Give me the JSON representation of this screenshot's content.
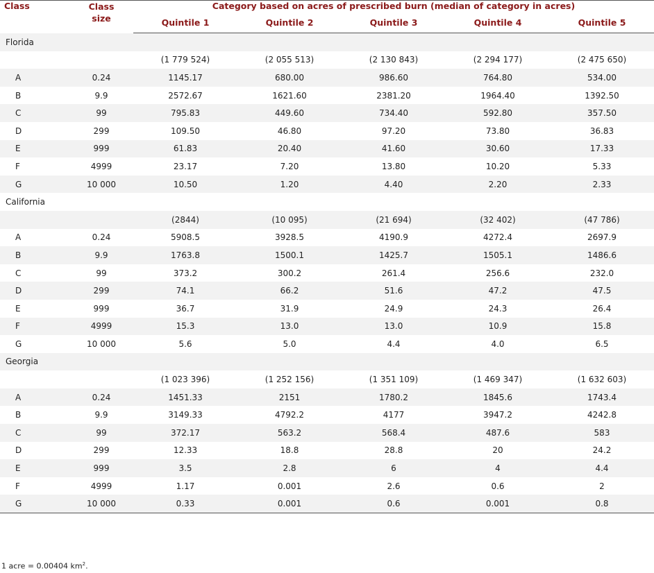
{
  "headers": {
    "class": "Class",
    "class_size": "Class size",
    "span": "Category based on acres of prescribed burn (median of category in acres)",
    "quintiles": [
      "Quintile 1",
      "Quintile 2",
      "Quintile 3",
      "Quintile 4",
      "Quintile 5"
    ]
  },
  "states": [
    {
      "name": "Florida",
      "medians": [
        "(1 779 524)",
        "(2 055 513)",
        "(2 130 843)",
        "(2 294 177)",
        "(2 475 650)"
      ],
      "rows": [
        {
          "cls": "A",
          "size": "0.24",
          "q": [
            "1145.17",
            "680.00",
            "986.60",
            "764.80",
            "534.00"
          ]
        },
        {
          "cls": "B",
          "size": "9.9",
          "q": [
            "2572.67",
            "1621.60",
            "2381.20",
            "1964.40",
            "1392.50"
          ]
        },
        {
          "cls": "C",
          "size": "99",
          "q": [
            "795.83",
            "449.60",
            "734.40",
            "592.80",
            "357.50"
          ]
        },
        {
          "cls": "D",
          "size": "299",
          "q": [
            "109.50",
            "46.80",
            "97.20",
            "73.80",
            "36.83"
          ]
        },
        {
          "cls": "E",
          "size": "999",
          "q": [
            "61.83",
            "20.40",
            "41.60",
            "30.60",
            "17.33"
          ]
        },
        {
          "cls": "F",
          "size": "4999",
          "q": [
            "23.17",
            "7.20",
            "13.80",
            "10.20",
            "5.33"
          ]
        },
        {
          "cls": "G",
          "size": "10 000",
          "q": [
            "10.50",
            "1.20",
            "4.40",
            "2.20",
            "2.33"
          ]
        }
      ]
    },
    {
      "name": "California",
      "medians": [
        "(2844)",
        "(10 095)",
        "(21 694)",
        "(32 402)",
        "(47 786)"
      ],
      "rows": [
        {
          "cls": "A",
          "size": "0.24",
          "q": [
            "5908.5",
            "3928.5",
            "4190.9",
            "4272.4",
            "2697.9"
          ]
        },
        {
          "cls": "B",
          "size": "9.9",
          "q": [
            "1763.8",
            "1500.1",
            "1425.7",
            "1505.1",
            "1486.6"
          ]
        },
        {
          "cls": "C",
          "size": "99",
          "q": [
            "373.2",
            "300.2",
            "261.4",
            "256.6",
            "232.0"
          ]
        },
        {
          "cls": "D",
          "size": "299",
          "q": [
            "74.1",
            "66.2",
            "51.6",
            "47.2",
            "47.5"
          ]
        },
        {
          "cls": "E",
          "size": "999",
          "q": [
            "36.7",
            "31.9",
            "24.9",
            "24.3",
            "26.4"
          ]
        },
        {
          "cls": "F",
          "size": "4999",
          "q": [
            "15.3",
            "13.0",
            "13.0",
            "10.9",
            "15.8"
          ]
        },
        {
          "cls": "G",
          "size": "10 000",
          "q": [
            "5.6",
            "5.0",
            "4.4",
            "4.0",
            "6.5"
          ]
        }
      ]
    },
    {
      "name": "Georgia",
      "medians": [
        "(1 023 396)",
        "(1 252 156)",
        "(1 351 109)",
        "(1 469 347)",
        "(1 632 603)"
      ],
      "rows": [
        {
          "cls": "A",
          "size": "0.24",
          "q": [
            "1451.33",
            "2151",
            "1780.2",
            "1845.6",
            "1743.4"
          ]
        },
        {
          "cls": "B",
          "size": "9.9",
          "q": [
            "3149.33",
            "4792.2",
            "4177",
            "3947.2",
            "4242.8"
          ]
        },
        {
          "cls": "C",
          "size": "99",
          "q": [
            "372.17",
            "563.2",
            "568.4",
            "487.6",
            "583"
          ]
        },
        {
          "cls": "D",
          "size": "299",
          "q": [
            "12.33",
            "18.8",
            "28.8",
            "20",
            "24.2"
          ]
        },
        {
          "cls": "E",
          "size": "999",
          "q": [
            "3.5",
            "2.8",
            "6",
            "4",
            "4.4"
          ]
        },
        {
          "cls": "F",
          "size": "4999",
          "q": [
            "1.17",
            "0.001",
            "2.6",
            "0.6",
            "2"
          ]
        },
        {
          "cls": "G",
          "size": "10 000",
          "q": [
            "0.33",
            "0.001",
            "0.6",
            "0.001",
            "0.8"
          ]
        }
      ]
    }
  ],
  "footnote": {
    "text": "1 acre = 0.00404 km",
    "sup": "2",
    "end": "."
  }
}
